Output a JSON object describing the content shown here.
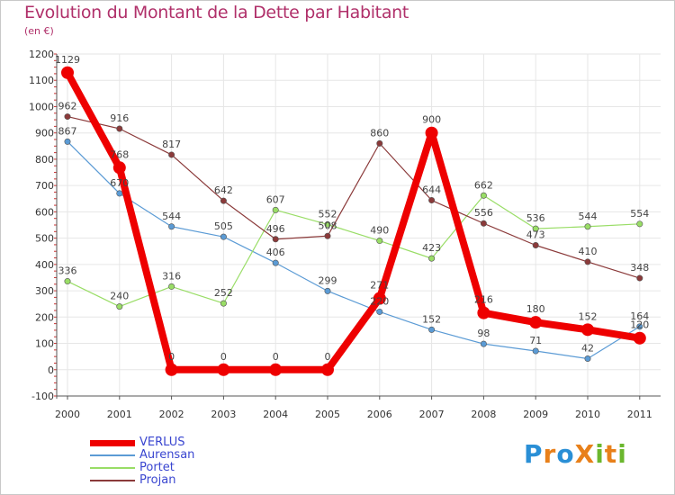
{
  "title": "Evolution du Montant de la Dette par Habitant",
  "subtitle": "(en €)",
  "brand": {
    "text": "ProXiti",
    "letters": [
      "P",
      "r",
      "o",
      "X",
      "i",
      "t",
      "i"
    ],
    "colors": [
      "#2a8fd6",
      "#e8801a",
      "#2a8fd6",
      "#e8801a",
      "#6bb72e",
      "#e8801a",
      "#6bb72e"
    ]
  },
  "chart_data": {
    "type": "line",
    "title": "Evolution du Montant de la Dette par Habitant",
    "ylabel": "(en €)",
    "xlabel": "",
    "categories": [
      "2000",
      "2001",
      "2002",
      "2003",
      "2004",
      "2005",
      "2006",
      "2007",
      "2008",
      "2009",
      "2010",
      "2011"
    ],
    "ylim": [
      -100,
      1200
    ],
    "yticks": [
      -100,
      0,
      100,
      200,
      300,
      400,
      500,
      600,
      700,
      800,
      900,
      1000,
      1100,
      1200
    ],
    "grid": true,
    "legend_position": "bottom-left",
    "series": [
      {
        "name": "VERLUS",
        "color": "#ee0000",
        "values": [
          1129,
          768,
          0,
          0,
          0,
          0,
          271,
          900,
          216,
          180,
          152,
          120
        ],
        "labels": [
          "1129",
          "768",
          "0",
          "0",
          "0",
          "0",
          "271",
          "900",
          "216",
          "180",
          "152",
          "120"
        ]
      },
      {
        "name": "Aurensan",
        "color": "#5b9bd5",
        "values": [
          867,
          670,
          544,
          505,
          406,
          299,
          220,
          152,
          98,
          71,
          42,
          164
        ],
        "labels": [
          "867",
          "670",
          "544",
          "505",
          "406",
          "299",
          "220",
          "152",
          "98",
          "71",
          "42",
          "164"
        ]
      },
      {
        "name": "Portet",
        "color": "#99dd66",
        "values": [
          336,
          240,
          316,
          252,
          607,
          552,
          490,
          423,
          662,
          536,
          544,
          554
        ],
        "labels": [
          "336",
          "240",
          "316",
          "252",
          "607",
          "552",
          "490",
          "423",
          "662",
          "536",
          "544",
          "554"
        ]
      },
      {
        "name": "Projan",
        "color": "#8b3a3a",
        "values": [
          962,
          916,
          817,
          642,
          496,
          508,
          860,
          644,
          556,
          473,
          410,
          348
        ],
        "labels": [
          "962",
          "916",
          "817",
          "642",
          "496",
          "508",
          "860",
          "644",
          "556",
          "473",
          "410",
          "348"
        ]
      }
    ]
  }
}
